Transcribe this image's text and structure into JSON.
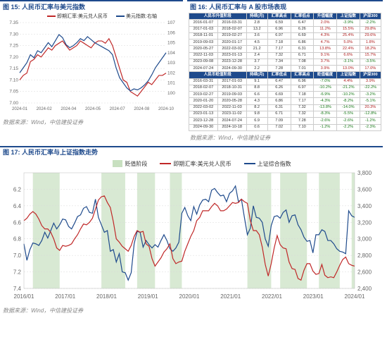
{
  "panel15": {
    "title": "图 15: 人民币汇率与美元指数",
    "source": "数据来源：Wind，中信建投证券",
    "legend": {
      "lhs": "即期汇率:美元兑人民币",
      "rhs": "美元指数:右轴"
    },
    "colors": {
      "red": "#c02828",
      "blue": "#1e4a8c",
      "grid": "#d8d8d8",
      "bg": "#ffffff"
    },
    "y_left": {
      "min": 7.0,
      "max": 7.35,
      "ticks": [
        "7.00",
        "7.05",
        "7.10",
        "7.15",
        "7.20",
        "7.25",
        "7.30",
        "7.35"
      ]
    },
    "y_right": {
      "min": 99,
      "max": 107,
      "ticks": [
        "100",
        "101",
        "102",
        "103",
        "104",
        "105",
        "106",
        "107"
      ]
    },
    "x_ticks": [
      "2024-01",
      "2024-02",
      "2024-04",
      "2024-05",
      "2024-07",
      "2024-08",
      "2024-10"
    ],
    "red_series": [
      7.1,
      7.12,
      7.13,
      7.18,
      7.19,
      7.21,
      7.2,
      7.22,
      7.24,
      7.23,
      7.25,
      7.26,
      7.27,
      7.25,
      7.23,
      7.24,
      7.25,
      7.27,
      7.26,
      7.25,
      7.24,
      7.26,
      7.27,
      7.27,
      7.26,
      7.28,
      7.25,
      7.2,
      7.15,
      7.1,
      7.09,
      7.05,
      7.04,
      7.03,
      7.05,
      7.07,
      7.09,
      7.08,
      7.1,
      7.12,
      7.12,
      7.13
    ],
    "blue_series": [
      102.0,
      102.5,
      103.0,
      103.8,
      103.5,
      104.2,
      104.0,
      104.5,
      105.0,
      104.6,
      105.2,
      105.8,
      105.5,
      104.8,
      104.5,
      104.7,
      105.0,
      105.4,
      105.2,
      105.6,
      105.3,
      105.0,
      104.8,
      104.6,
      104.4,
      104.2,
      103.8,
      102.5,
      101.5,
      101.0,
      100.5,
      100.2,
      100.4,
      100.3,
      100.5,
      100.8,
      101.2,
      101.8,
      102.5,
      103.0,
      103.5,
      104.0
    ]
  },
  "panel16": {
    "title": "图 16: 人民币汇率与 A 股市场表现",
    "source": "数据来源：Wind，中信建投证券",
    "section1_label": "人民币升值阶段",
    "section2_label": "人民币贬值阶段",
    "headers1": [
      "人民币升值阶段",
      "",
      "持续(月)",
      "汇率高点",
      "汇率低点",
      "升值幅度",
      "上证指数",
      "沪深300"
    ],
    "rows1": [
      [
        "2016-01-07",
        "2016-03-31",
        "2.8",
        "6.59",
        "6.47",
        "2.0%",
        "-3.9%",
        "-2.2%"
      ],
      [
        "2017-01-03",
        "2018-02-07",
        "13.2",
        "6.96",
        "6.26",
        "11.2%",
        "15.5%",
        "29.8%"
      ],
      [
        "2018-11-01",
        "2019-02-27",
        "3.6",
        "6.97",
        "6.69",
        "4.3%",
        "25.4%",
        "29.6%"
      ],
      [
        "2019-09-03",
        "2020-01-17",
        "4.5",
        "7.18",
        "6.86",
        "4.7%",
        "5.0%",
        "1.8%"
      ],
      [
        "2020-05-27",
        "2022-03-02",
        "21.2",
        "7.17",
        "6.31",
        "13.8%",
        "22.4%",
        "18.2%"
      ],
      [
        "2022-11-03",
        "2023-01-13",
        "2.4",
        "7.32",
        "6.71",
        "9.1%",
        "6.6%",
        "15.7%"
      ],
      [
        "2023-09-08",
        "2023-12-28",
        "3.7",
        "7.34",
        "7.08",
        "3.7%",
        "-3.1%",
        "-3.5%"
      ],
      [
        "2024-07-24",
        "2024-09-30",
        "2.2",
        "7.28",
        "7.01",
        "3.9%",
        "13.0%",
        "17.0%"
      ]
    ],
    "headers2": [
      "人民币贬值阶段",
      "",
      "持续(月)",
      "汇率低点",
      "汇率高点",
      "贬值幅度",
      "上证指数",
      "沪深300"
    ],
    "rows2": [
      [
        "2016-03-31",
        "2017-01-03",
        "9.1",
        "6.47",
        "6.96",
        "-7.0%",
        "4.4%",
        "3.9%"
      ],
      [
        "2018-02-07",
        "2018-10-31",
        "8.8",
        "6.26",
        "6.97",
        "-10.2%",
        "-21.2%",
        "-22.2%"
      ],
      [
        "2019-02-27",
        "2019-09-03",
        "6.6",
        "6.69",
        "7.18",
        "-6.9%",
        "-10.2%",
        "-3.2%"
      ],
      [
        "2020-01-20",
        "2020-05-28",
        "4.3",
        "6.86",
        "7.17",
        "-4.3%",
        "-8.2%",
        "-5.1%"
      ],
      [
        "2022-03-02",
        "2022-11-03",
        "8.2",
        "6.31",
        "7.32",
        "-13.8%",
        "-14.0%",
        "20.3%"
      ],
      [
        "2023-01-13",
        "2023-11-02",
        "9.8",
        "6.71",
        "7.32",
        "-8.3%",
        "-5.5%",
        "-12.8%"
      ],
      [
        "2023-12-28",
        "2024-07-24",
        "6.9",
        "7.09",
        "7.28",
        "-2.6%",
        "-2.6%",
        "-1.2%"
      ],
      [
        "2024-09-30",
        "2024-10-18",
        "0.6",
        "7.02",
        "7.10",
        "-1.2%",
        "-2.2%",
        "-2.3%"
      ]
    ]
  },
  "panel17": {
    "title": "图 17: 人民币汇率与上证指数走势",
    "source": "数据来源：Wind，中信建投证券",
    "legend": {
      "band": "贬值阶段",
      "red": "即期汇率:美元兑人民币",
      "blue": "上证综合指数"
    },
    "colors": {
      "red": "#c02828",
      "blue": "#1e4a8c",
      "band": "#c8e0c0",
      "grid": "#d8d8d8",
      "bg": "#ffffff"
    },
    "y_left": {
      "min": 6.0,
      "max": 7.4,
      "ticks": [
        "6.2",
        "6.4",
        "6.6",
        "6.8",
        "7.0",
        "7.2",
        "7.4"
      ]
    },
    "y_right": {
      "min": 2400,
      "max": 3800,
      "ticks": [
        "2,400",
        "2,600",
        "2,800",
        "3,000",
        "3,200",
        "3,400",
        "3,600",
        "3,800"
      ]
    },
    "x_ticks": [
      "2016/01",
      "2017/01",
      "2018/01",
      "2019/01",
      "2020/01",
      "2021/01",
      "2022/01",
      "2023/01",
      "2024/01"
    ],
    "bands": [
      [
        3,
        12
      ],
      [
        26,
        34
      ],
      [
        38,
        44
      ],
      [
        49,
        53
      ],
      [
        75,
        83
      ],
      [
        86,
        95
      ],
      [
        99,
        106
      ],
      [
        110,
        111
      ]
    ],
    "n_pts": 112,
    "red_series": [
      6.58,
      6.55,
      6.5,
      6.47,
      6.5,
      6.56,
      6.64,
      6.68,
      6.68,
      6.72,
      6.8,
      6.91,
      6.94,
      6.88,
      6.89,
      6.88,
      6.86,
      6.8,
      6.75,
      6.68,
      6.62,
      6.63,
      6.6,
      6.55,
      6.44,
      6.33,
      6.29,
      6.28,
      6.36,
      6.42,
      6.59,
      6.8,
      6.84,
      6.89,
      6.92,
      6.95,
      6.88,
      6.77,
      6.7,
      6.72,
      6.71,
      6.86,
      6.89,
      7.04,
      7.13,
      7.08,
      7.03,
      6.96,
      6.92,
      6.86,
      7.04,
      7.1,
      7.08,
      7.07,
      6.95,
      6.86,
      6.77,
      6.7,
      6.58,
      6.54,
      6.46,
      6.46,
      6.46,
      6.41,
      6.37,
      6.4,
      6.46,
      6.46,
      6.44,
      6.4,
      6.36,
      6.37,
      6.36,
      6.32,
      6.35,
      6.37,
      6.58,
      6.7,
      6.7,
      6.75,
      6.9,
      7.11,
      7.25,
      7.1,
      6.91,
      6.76,
      6.87,
      6.91,
      6.92,
      7.08,
      7.16,
      7.17,
      7.28,
      7.3,
      7.18,
      7.1,
      7.1,
      7.19,
      7.23,
      7.22,
      7.11,
      7.24,
      7.27,
      7.26,
      7.27,
      7.2,
      7.12,
      7.05,
      7.02,
      7.1,
      7.12,
      7.13
    ],
    "blue_series": [
      2940,
      2740,
      2870,
      2950,
      2940,
      2920,
      2980,
      3080,
      3010,
      3100,
      3190,
      3120,
      3170,
      3240,
      3230,
      3150,
      3120,
      3190,
      3270,
      3290,
      3370,
      3390,
      3320,
      3310,
      3480,
      3260,
      3170,
      3080,
      3100,
      2850,
      2870,
      2720,
      2820,
      2600,
      2590,
      2500,
      2590,
      2940,
      3090,
      3080,
      2900,
      2980,
      2930,
      2890,
      2930,
      2900,
      2980,
      3050,
      2980,
      2880,
      2850,
      2890,
      2960,
      3310,
      3380,
      3280,
      3220,
      3390,
      3300,
      3410,
      3470,
      3480,
      3450,
      3590,
      3610,
      3560,
      3520,
      3530,
      3450,
      3550,
      3580,
      3640,
      3450,
      3480,
      3260,
      3050,
      3130,
      3400,
      3260,
      3250,
      3200,
      3000,
      2910,
      3160,
      3270,
      3280,
      3250,
      3320,
      3350,
      3200,
      3280,
      3290,
      3170,
      3110,
      3020,
      2970,
      2980,
      2830,
      3050,
      3050,
      3110,
      3090,
      2980,
      2980,
      2940,
      2880,
      2850,
      2840,
      2820,
      3340,
      3280,
      3260
    ]
  }
}
